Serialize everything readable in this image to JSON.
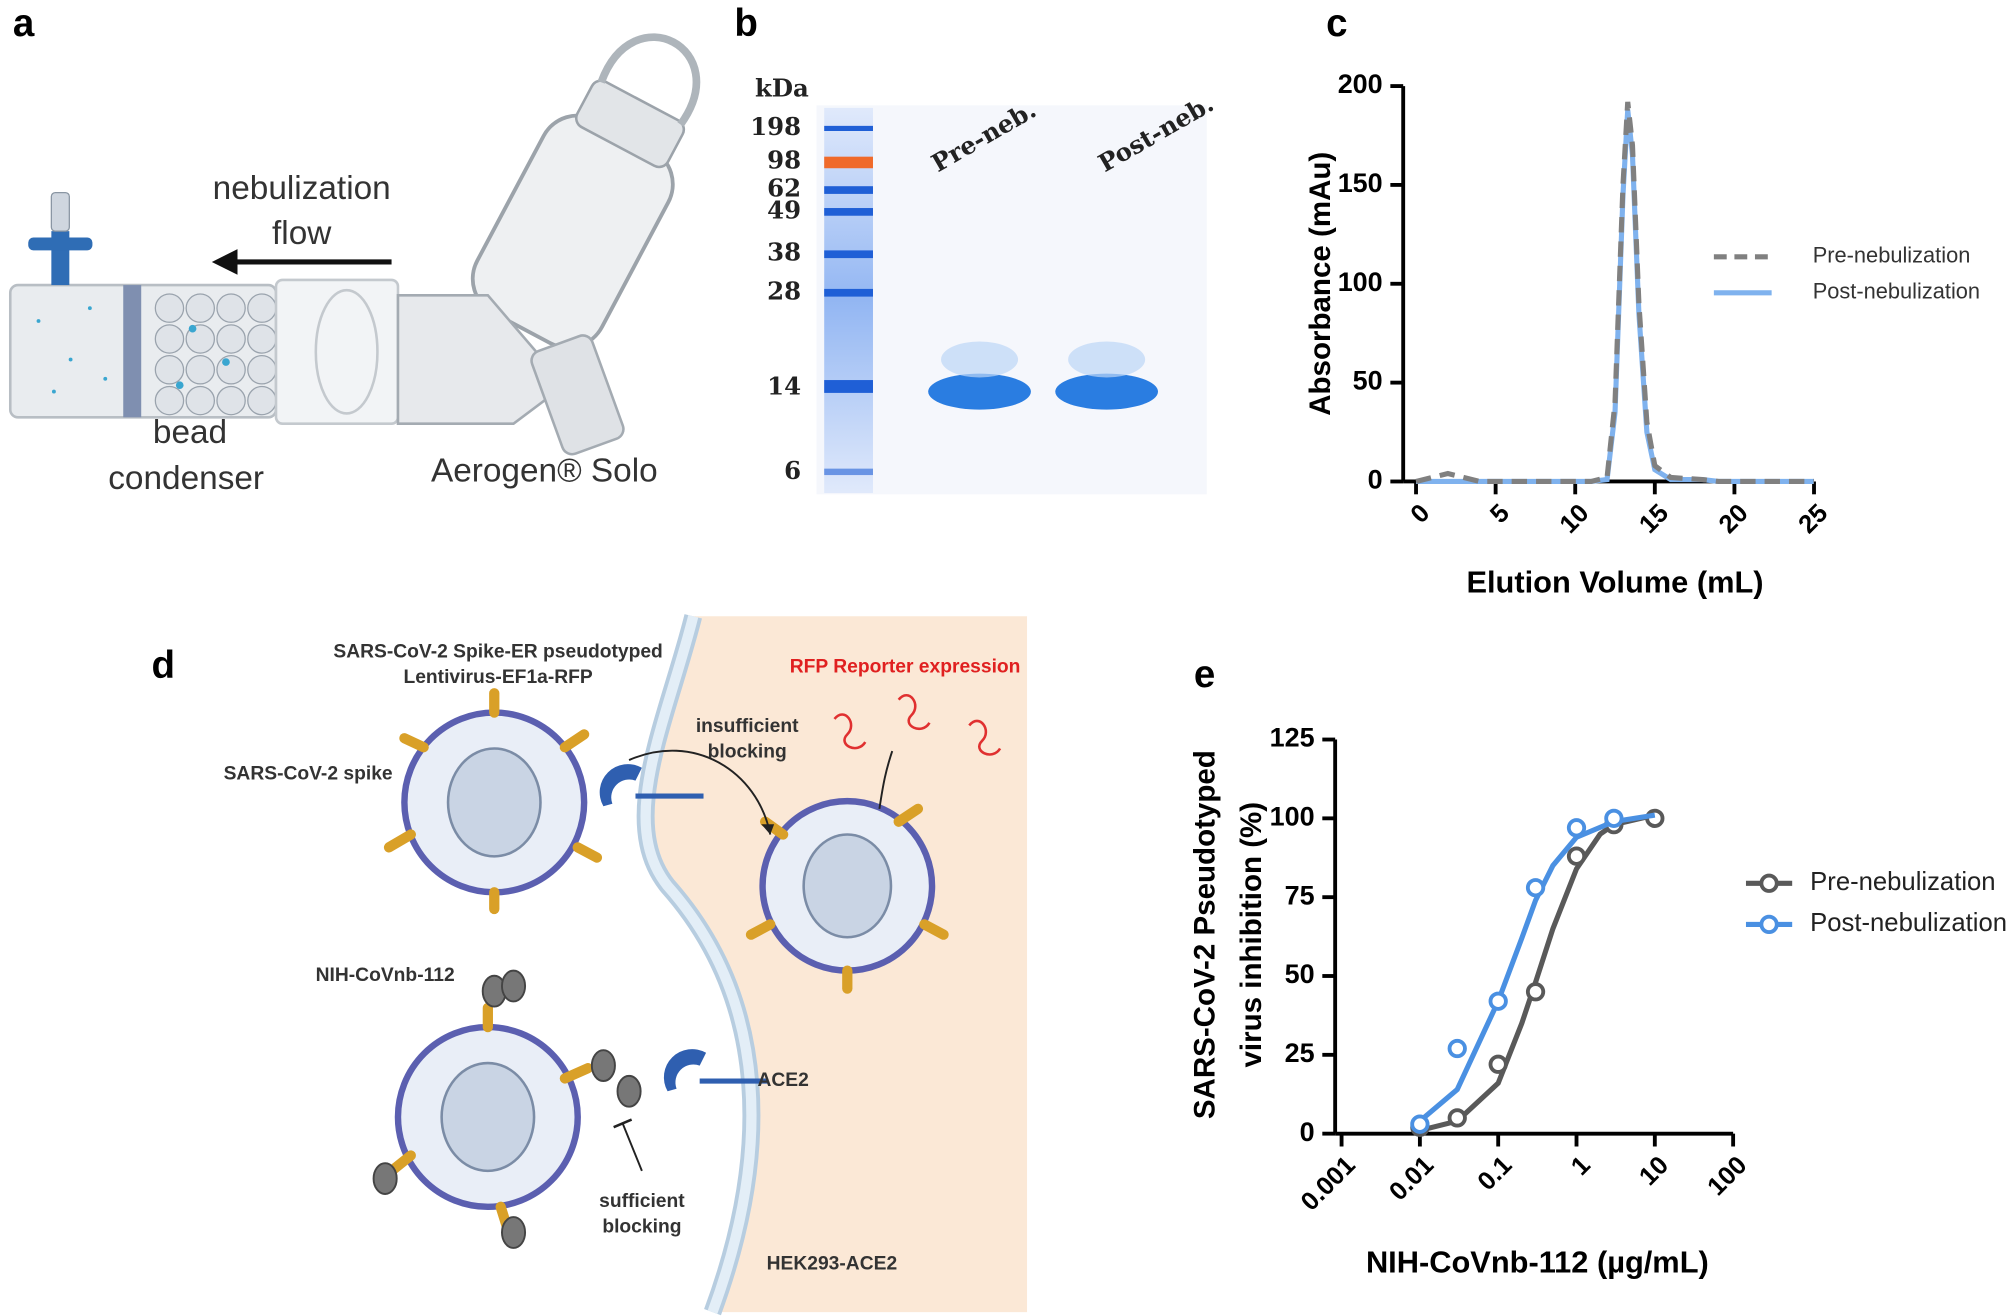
{
  "panel_labels": [
    "a",
    "b",
    "c",
    "d",
    "e"
  ],
  "panel_a": {
    "flow_label": [
      "nebulization",
      "flow"
    ],
    "condenser_label": [
      "bead",
      "condenser"
    ],
    "device_label": "Aerogen® Solo"
  },
  "panel_b": {
    "unit": "kDa",
    "ladder": [
      "198",
      "98",
      "62",
      "49",
      "38",
      "28",
      "14",
      "6"
    ],
    "lanes": [
      "Pre-neb.",
      "Post-neb."
    ]
  },
  "panel_d": {
    "virus_title": [
      "SARS-CoV-2 Spike-ER pseudotyped",
      "Lentivirus-EF1a-RFP"
    ],
    "spike_label": "SARS-CoV-2 spike",
    "reporter": "RFP Reporter expression",
    "insufficient": [
      "insufficient",
      "blocking"
    ],
    "nanobody": "NIH-CoVnb-112",
    "ace2": "ACE2",
    "sufficient": [
      "sufficient",
      "blocking"
    ],
    "cell": "HEK293-ACE2"
  },
  "chart_data": [
    {
      "type": "line",
      "x_label": "Elution Volume (mL)",
      "y_label": [
        "Absorbance (mAu)"
      ],
      "x": [
        0,
        1,
        2,
        3,
        4,
        5,
        8,
        11,
        12,
        12.5,
        13,
        13.3,
        13.6,
        14,
        14.5,
        15,
        16,
        18,
        19,
        25
      ],
      "series": [
        {
          "name": "Pre-nebulization",
          "color": "#808080",
          "dashed": true,
          "values": [
            0,
            2,
            4,
            2,
            0,
            0,
            0,
            0,
            2,
            40,
            150,
            192,
            170,
            90,
            30,
            8,
            2,
            1,
            0,
            0
          ]
        },
        {
          "name": "Post-nebulization",
          "color": "#7fb2ee",
          "dashed": false,
          "values": [
            0,
            0,
            0,
            0,
            0,
            0,
            0,
            0,
            1,
            35,
            145,
            188,
            165,
            85,
            25,
            6,
            1,
            1,
            0,
            0
          ]
        }
      ],
      "xlim": [
        0,
        25
      ],
      "xticks": [
        0,
        5,
        10,
        15,
        20,
        25
      ],
      "ylim": [
        0,
        200
      ],
      "yticks": [
        0,
        50,
        100,
        150,
        200
      ],
      "legend": "right"
    },
    {
      "type": "scatter",
      "x_label": "NIH-CoVnb-112 (µg/mL)",
      "y_label": [
        "SARS-CoV-2 Pseudotyped",
        "virus inhibition (%)"
      ],
      "xscale": "log",
      "series": [
        {
          "name": "Pre-nebulization",
          "color": "#595959",
          "x": [
            0.01,
            0.03,
            0.1,
            0.3,
            1,
            3,
            10
          ],
          "values": [
            2,
            5,
            22,
            45,
            88,
            98,
            100
          ],
          "fit": {
            "x": [
              0.01,
              0.03,
              0.1,
              0.2,
              0.3,
              0.5,
              1,
              2,
              3,
              10
            ],
            "values": [
              1,
              4,
              16,
              35,
              48,
              65,
              84,
              95,
              98,
              101
            ]
          }
        },
        {
          "name": "Post-nebulization",
          "color": "#4a90e2",
          "x": [
            0.01,
            0.03,
            0.1,
            0.3,
            1,
            3
          ],
          "values": [
            3,
            27,
            42,
            78,
            97,
            100
          ],
          "fit": {
            "x": [
              0.01,
              0.03,
              0.1,
              0.2,
              0.3,
              0.5,
              1,
              3,
              10
            ],
            "values": [
              4,
              14,
              42,
              62,
              74,
              85,
              94,
              99,
              101
            ]
          }
        }
      ],
      "xlim": [
        0.001,
        100
      ],
      "xticks": [
        0.001,
        0.01,
        0.1,
        1,
        10,
        100
      ],
      "ylim": [
        0,
        125
      ],
      "yticks": [
        0,
        25,
        50,
        75,
        100,
        125
      ],
      "legend": "right"
    }
  ]
}
